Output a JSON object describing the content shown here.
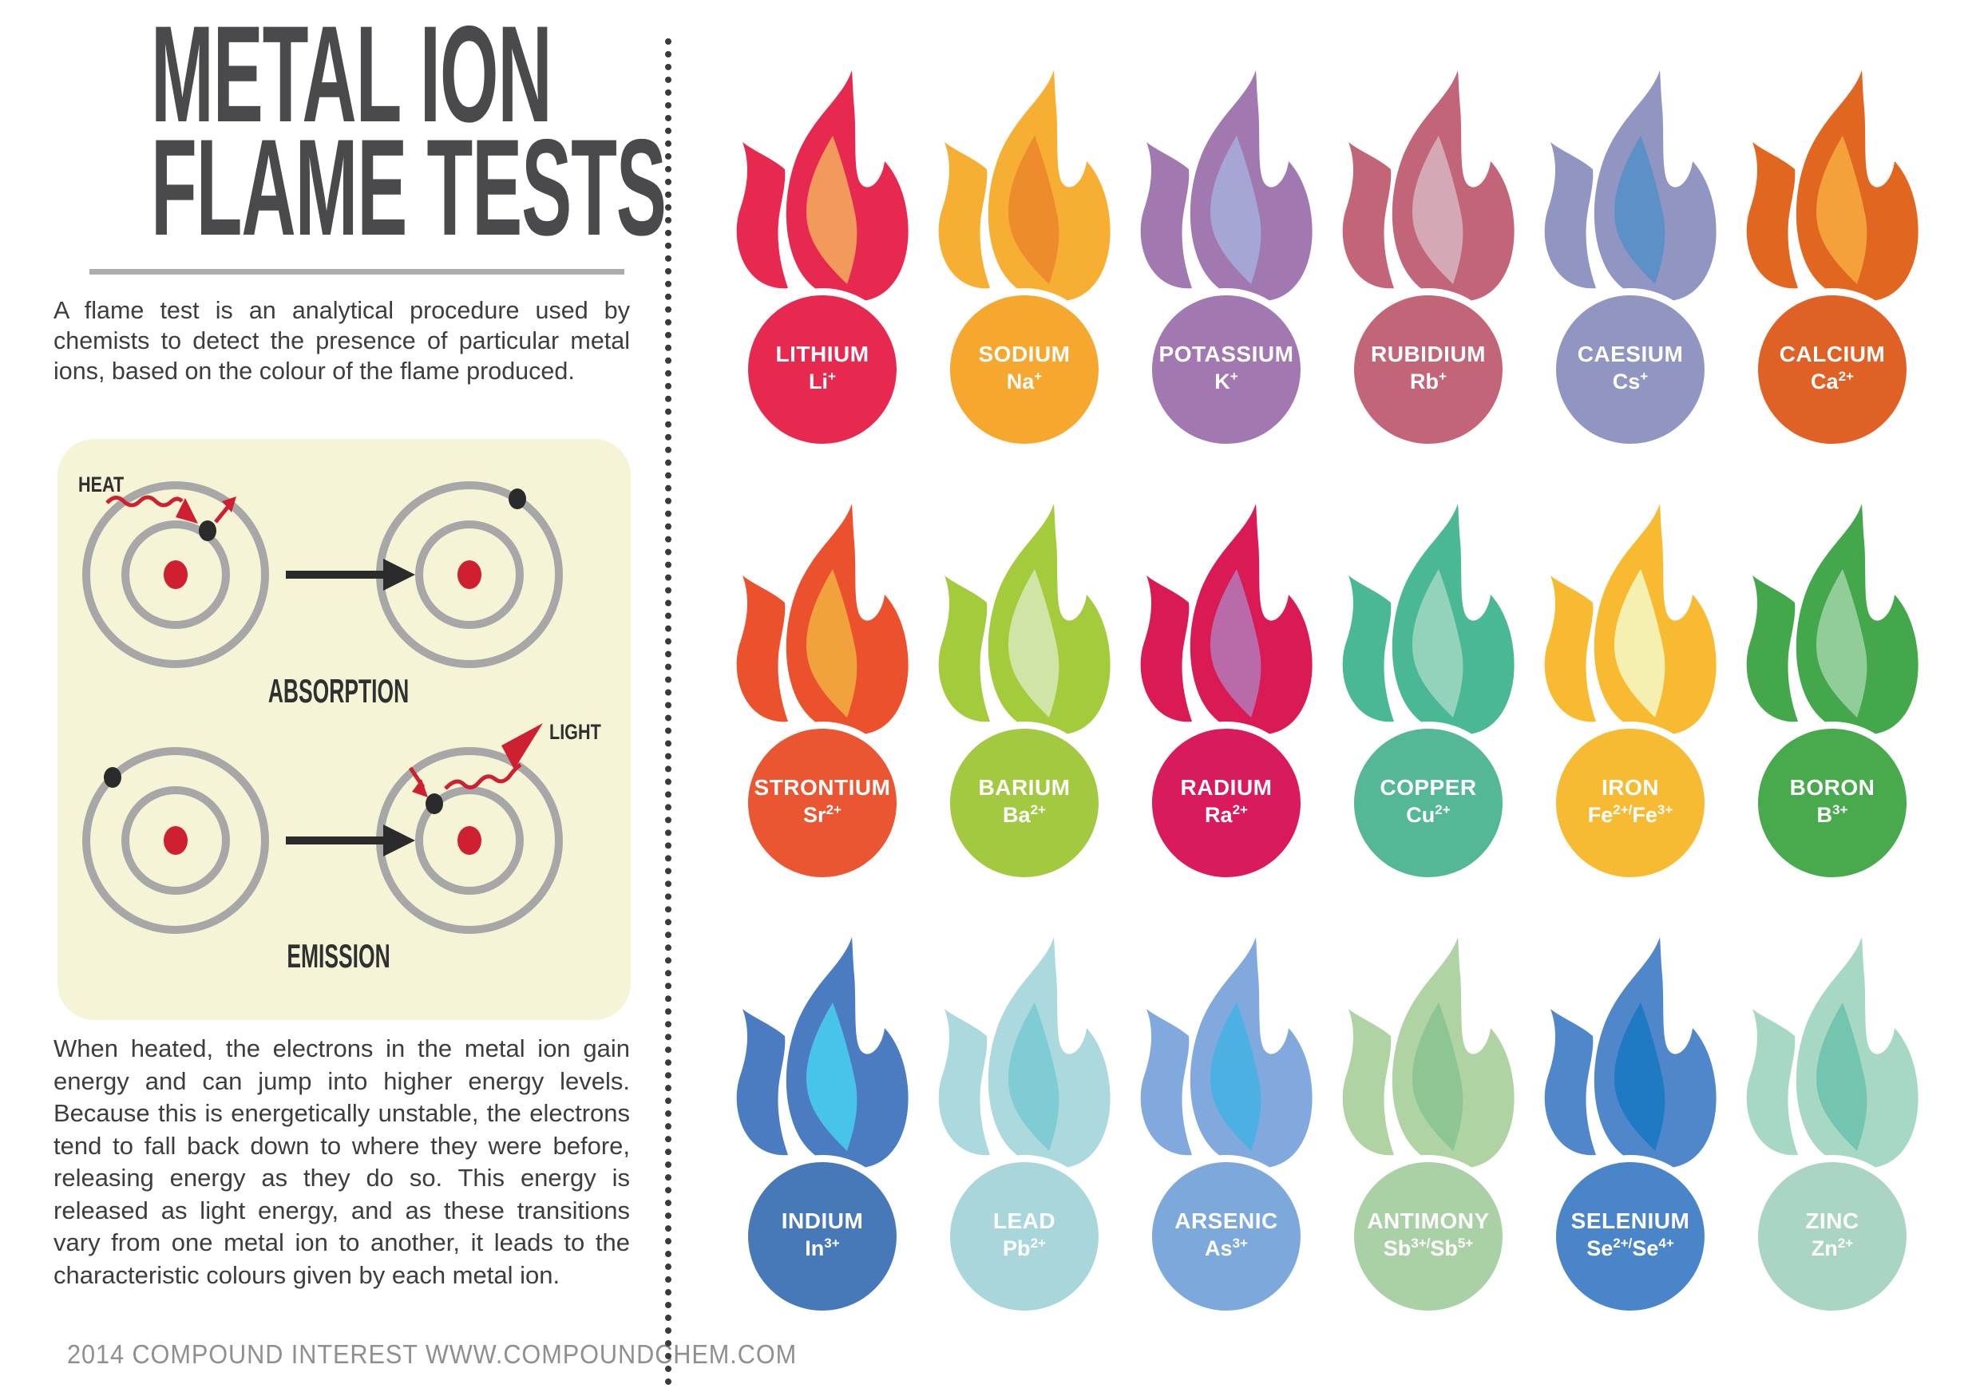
{
  "header": {
    "title_line1": "METAL ION",
    "title_line2": "FLAME TESTS"
  },
  "intro": "A flame test is an analytical procedure used by chemists to detect the presence of particular metal ions, based on the colour of the flame produced.",
  "diagram": {
    "heat": "HEAT",
    "light": "LIGHT",
    "absorption": "ABSORPTION",
    "emission": "EMISSION",
    "box_color": "#F5F4D6",
    "shell_color": "#A7A7A7",
    "nucleus_color": "#CE2030",
    "electron_color": "#2B2B2B",
    "arrow_color": "#2B2B2B",
    "accent_red": "#CE2030"
  },
  "body_text": "When heated, the electrons in the metal ion gain energy and can jump into higher energy levels. Because this is energetically unstable, the electrons tend to fall back down to where they were before, releasing energy as they do so. This energy is released as light energy, and as these transitions vary from one metal ion to another, it leads to the characteristic colours given by each metal ion.",
  "footer": "2014 COMPOUND INTEREST WWW.COMPOUNDCHEM.COM",
  "elements": [
    {
      "name": "LITHIUM",
      "formula": "Li+",
      "flame": "#E72950",
      "inner": "#F29A5B",
      "circle": "#E72950"
    },
    {
      "name": "SODIUM",
      "formula": "Na+",
      "flame": "#F6AE33",
      "inner": "#ED8B2D",
      "circle": "#F5A72E"
    },
    {
      "name": "POTASSIUM",
      "formula": "K+",
      "flame": "#A178B0",
      "inner": "#A5A6D5",
      "circle": "#A178B0"
    },
    {
      "name": "RUBIDIUM",
      "formula": "Rb+",
      "flame": "#C26579",
      "inner": "#D5A8B5",
      "circle": "#C26579"
    },
    {
      "name": "CAESIUM",
      "formula": "Cs+",
      "flame": "#9095C1",
      "inner": "#5D90C6",
      "circle": "#9095C1"
    },
    {
      "name": "CALCIUM",
      "formula": "Ca2+",
      "flame": "#E1661F",
      "inner": "#F5A13B",
      "circle": "#DF6126"
    },
    {
      "name": "STRONTIUM",
      "formula": "Sr2+",
      "flame": "#EB512D",
      "inner": "#F1A23D",
      "circle": "#EA5532"
    },
    {
      "name": "BARIUM",
      "formula": "Ba2+",
      "flame": "#A3CB3C",
      "inner": "#D0E4A5",
      "circle": "#A2C93F"
    },
    {
      "name": "RADIUM",
      "formula": "Ra2+",
      "flame": "#DA1A55",
      "inner": "#BA69A9",
      "circle": "#D91A5C"
    },
    {
      "name": "COPPER",
      "formula": "Cu2+",
      "flame": "#4AB795",
      "inner": "#93D2BB",
      "circle": "#54B896"
    },
    {
      "name": "IRON",
      "formula": "Fe2+/Fe3+",
      "flame": "#F7BA30",
      "inner": "#F6F0B0",
      "circle": "#F7BB33"
    },
    {
      "name": "BORON",
      "formula": "B3+",
      "flame": "#45A74B",
      "inner": "#91CD98",
      "circle": "#48AA4D"
    },
    {
      "name": "INDIUM",
      "formula": "In3+",
      "flame": "#4B7CC2",
      "inner": "#48C3EA",
      "circle": "#4779B9"
    },
    {
      "name": "LEAD",
      "formula": "Pb2+",
      "flame": "#ACD9DD",
      "inner": "#7FCCD4",
      "circle": "#A9D6DB"
    },
    {
      "name": "ARSENIC",
      "formula": "As3+",
      "flame": "#81A9DE",
      "inner": "#4CB0E3",
      "circle": "#7CA8DB"
    },
    {
      "name": "ANTIMONY",
      "formula": "Sb3+/Sb5+",
      "flame": "#AFD3A2",
      "inner": "#8DC593",
      "circle": "#AAD0A5"
    },
    {
      "name": "SELENIUM",
      "formula": "Se2+/Se4+",
      "flame": "#5087CB",
      "inner": "#2079C3",
      "circle": "#4B85C9"
    },
    {
      "name": "ZINC",
      "formula": "Zn2+",
      "flame": "#A7D8C4",
      "inner": "#74C5B0",
      "circle": "#AAD5C3"
    }
  ]
}
